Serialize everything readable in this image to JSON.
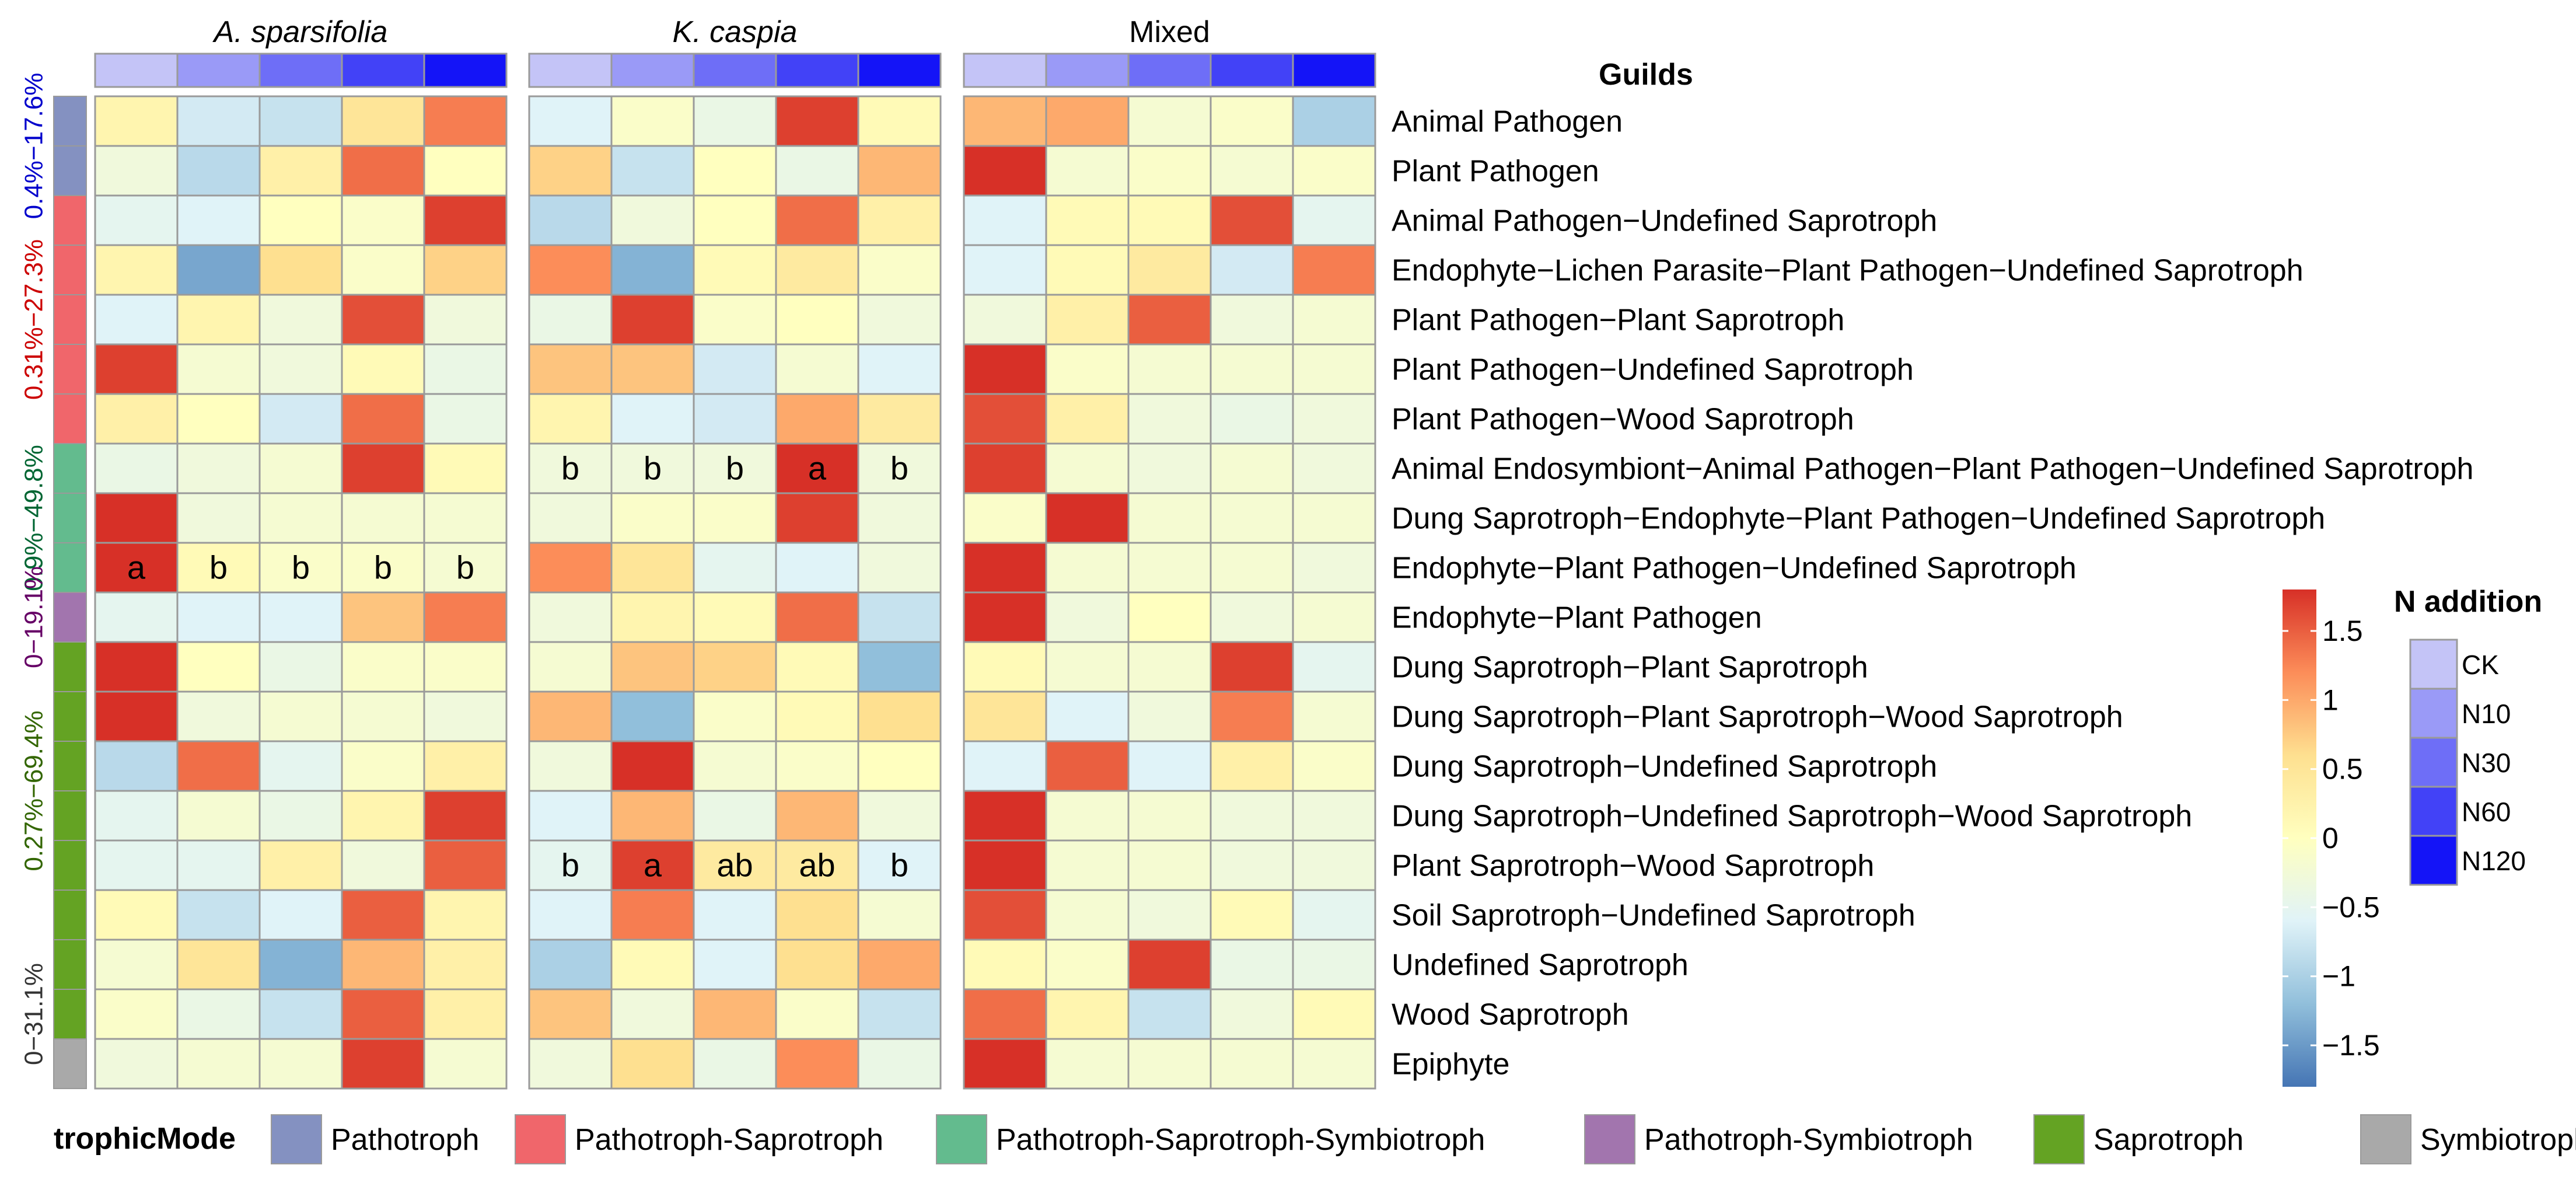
{
  "chart_data": {
    "type": "heatmap",
    "panels": [
      {
        "title": "A. sparsifolia",
        "italic": true
      },
      {
        "title": "K.  caspia",
        "italic": true
      },
      {
        "title": "Mixed",
        "italic": false
      }
    ],
    "treatments": [
      "CK",
      "N10",
      "N30",
      "N60",
      "N120"
    ],
    "treatment_colors": [
      "#c4c4f7",
      "#9a9af7",
      "#6e6ef7",
      "#4242f7",
      "#1414f7"
    ],
    "guilds_header": "Guilds",
    "guilds": [
      "Animal Pathogen",
      "Plant Pathogen",
      "Animal Pathogen−Undefined Saprotroph",
      "Endophyte−Lichen Parasite−Plant Pathogen−Undefined Saprotroph",
      "Plant Pathogen−Plant Saprotroph",
      "Plant Pathogen−Undefined Saprotroph",
      "Plant Pathogen−Wood Saprotroph",
      "Animal Endosymbiont−Animal Pathogen−Plant Pathogen−Undefined Saprotroph",
      "Dung Saprotroph−Endophyte−Plant Pathogen−Undefined Saprotroph",
      "Endophyte−Plant Pathogen−Undefined Saprotroph",
      "Endophyte−Plant Pathogen",
      "Dung Saprotroph−Plant Saprotroph",
      "Dung Saprotroph−Plant Saprotroph−Wood Saprotroph",
      "Dung Saprotroph−Undefined Saprotroph",
      "Dung Saprotroph−Undefined Saprotroph−Wood Saprotroph",
      "Plant Saprotroph−Wood Saprotroph",
      "Soil Saprotroph−Undefined Saprotroph",
      "Undefined Saprotroph",
      "Wood Saprotroph",
      "Epiphyte"
    ],
    "row_modes": [
      0,
      0,
      1,
      1,
      1,
      1,
      1,
      2,
      2,
      2,
      3,
      4,
      4,
      4,
      4,
      4,
      4,
      4,
      4,
      5
    ],
    "values": [
      [
        [
          0.2,
          -0.7,
          -0.8,
          0.5,
          1.3
        ],
        [
          -0.3,
          -0.9,
          0.3,
          1.4,
          0.0
        ],
        [
          -0.5,
          -0.6,
          0.0,
          -0.1,
          1.7
        ],
        [
          0.2,
          -1.4,
          0.6,
          -0.1,
          0.7
        ],
        [
          -0.6,
          0.2,
          -0.3,
          1.6,
          -0.3
        ],
        [
          1.7,
          -0.2,
          -0.3,
          0.1,
          -0.4
        ],
        [
          0.3,
          0.0,
          -0.7,
          1.4,
          -0.4
        ],
        [
          -0.4,
          -0.3,
          -0.2,
          1.7,
          0.1
        ],
        [
          1.8,
          -0.3,
          -0.2,
          -0.2,
          -0.2
        ],
        [
          1.8,
          0.1,
          -0.1,
          -0.1,
          -0.2
        ],
        [
          -0.5,
          -0.6,
          -0.6,
          0.8,
          1.3
        ],
        [
          1.8,
          0.0,
          -0.4,
          -0.1,
          -0.1
        ],
        [
          1.8,
          -0.3,
          -0.2,
          -0.2,
          -0.3
        ],
        [
          -0.9,
          1.4,
          -0.5,
          -0.1,
          0.3
        ],
        [
          -0.5,
          -0.2,
          -0.4,
          0.2,
          1.7
        ],
        [
          -0.5,
          -0.5,
          0.3,
          -0.3,
          1.5
        ],
        [
          0.1,
          -0.8,
          -0.6,
          1.5,
          0.2
        ],
        [
          -0.2,
          0.5,
          -1.3,
          0.9,
          0.3
        ],
        [
          -0.1,
          -0.4,
          -0.8,
          1.5,
          0.3
        ],
        [
          -0.3,
          -0.2,
          -0.2,
          1.7,
          -0.2
        ]
      ],
      [
        [
          -0.6,
          -0.1,
          -0.4,
          1.7,
          0.1
        ],
        [
          0.7,
          -0.8,
          0.0,
          -0.4,
          0.9
        ],
        [
          -0.9,
          -0.3,
          0.0,
          1.4,
          0.3
        ],
        [
          1.2,
          -1.3,
          0.1,
          0.4,
          -0.1
        ],
        [
          -0.4,
          1.7,
          -0.1,
          0.0,
          -0.3
        ],
        [
          0.8,
          0.8,
          -0.7,
          -0.2,
          -0.6
        ],
        [
          0.2,
          -0.6,
          -0.7,
          1.0,
          0.4
        ],
        [
          -0.3,
          -0.3,
          -0.3,
          1.8,
          -0.3
        ],
        [
          -0.3,
          -0.1,
          -0.1,
          1.7,
          -0.3
        ],
        [
          1.2,
          0.5,
          -0.5,
          -0.6,
          -0.3
        ],
        [
          -0.3,
          0.2,
          0.1,
          1.4,
          -0.8
        ],
        [
          -0.2,
          0.8,
          0.7,
          0.1,
          -1.2
        ],
        [
          0.9,
          -1.2,
          -0.1,
          0.1,
          0.6
        ],
        [
          -0.3,
          1.8,
          -0.2,
          -0.1,
          0.0
        ],
        [
          -0.6,
          0.9,
          -0.4,
          0.9,
          -0.3
        ],
        [
          -0.5,
          1.7,
          0.4,
          0.4,
          -0.6
        ],
        [
          -0.6,
          1.3,
          -0.6,
          0.6,
          -0.2
        ],
        [
          -1.0,
          0.1,
          -0.6,
          0.6,
          1.0
        ],
        [
          0.8,
          -0.3,
          0.9,
          -0.1,
          -0.8
        ],
        [
          -0.3,
          0.6,
          -0.4,
          1.2,
          -0.4
        ]
      ],
      [
        [
          0.9,
          1.0,
          -0.2,
          -0.1,
          -1.0
        ],
        [
          1.8,
          -0.2,
          -0.1,
          -0.2,
          -0.1
        ],
        [
          -0.6,
          0.1,
          0.1,
          1.6,
          -0.5
        ],
        [
          -0.6,
          0.1,
          0.4,
          -0.7,
          1.3
        ],
        [
          -0.3,
          0.3,
          1.5,
          -0.3,
          -0.2
        ],
        [
          1.8,
          -0.1,
          -0.2,
          -0.2,
          -0.2
        ],
        [
          1.6,
          0.3,
          -0.3,
          -0.4,
          -0.3
        ],
        [
          1.7,
          -0.2,
          -0.3,
          -0.2,
          -0.3
        ],
        [
          -0.1,
          1.8,
          -0.2,
          -0.2,
          -0.2
        ],
        [
          1.8,
          -0.2,
          -0.2,
          -0.2,
          -0.3
        ],
        [
          1.8,
          -0.3,
          0.0,
          -0.3,
          -0.2
        ],
        [
          0.1,
          -0.2,
          -0.2,
          1.7,
          -0.5
        ],
        [
          0.5,
          -0.6,
          -0.3,
          1.3,
          -0.2
        ],
        [
          -0.6,
          1.5,
          -0.6,
          0.3,
          -0.1
        ],
        [
          1.8,
          -0.2,
          -0.2,
          -0.3,
          -0.3
        ],
        [
          1.8,
          -0.2,
          -0.2,
          -0.3,
          -0.3
        ],
        [
          1.6,
          -0.2,
          -0.3,
          0.1,
          -0.5
        ],
        [
          0.1,
          -0.1,
          1.7,
          -0.4,
          -0.4
        ],
        [
          1.4,
          0.2,
          -0.8,
          -0.3,
          0.1
        ],
        [
          1.8,
          -0.2,
          -0.2,
          -0.2,
          -0.2
        ]
      ]
    ],
    "cell_labels": [
      {
        "panel": 0,
        "row": 9,
        "labels": [
          "a",
          "b",
          "b",
          "b",
          "b"
        ]
      },
      {
        "panel": 1,
        "row": 7,
        "labels": [
          "b",
          "b",
          "b",
          "a",
          "b"
        ]
      },
      {
        "panel": 1,
        "row": 15,
        "labels": [
          "b",
          "a",
          "ab",
          "ab",
          "b"
        ]
      }
    ],
    "range_labels": [
      {
        "text": "0.4%−17.6%",
        "color": "#0000cc",
        "from_row": 0,
        "to_row": 1
      },
      {
        "text": "0.31%−27.3%",
        "color": "#cc0000",
        "from_row": 2,
        "to_row": 6
      },
      {
        "text": "0.9%−49.8%",
        "color": "#006633",
        "from_row": 7,
        "to_row": 9
      },
      {
        "text": "0−19.1%",
        "color": "#660066",
        "from_row": 10,
        "to_row": 10
      },
      {
        "text": "0.27%−69.4%",
        "color": "#336600",
        "from_row": 11,
        "to_row": 16
      },
      {
        "text": "0−31.1%",
        "color": "#333333",
        "from_row": 17,
        "to_row": 19
      }
    ],
    "trophic_mode": {
      "title": "trophicMode",
      "items": [
        {
          "label": "Pathotroph",
          "color": "#8491c1"
        },
        {
          "label": "Pathotroph-Saprotroph",
          "color": "#f0666b"
        },
        {
          "label": "Pathotroph-Saprotroph-Symbiotroph",
          "color": "#63bb8e"
        },
        {
          "label": "Pathotroph-Symbiotroph",
          "color": "#a275ae"
        },
        {
          "label": "Saprotroph",
          "color": "#64a323"
        },
        {
          "label": "Symbiotroph",
          "color": "#a9a9a9"
        }
      ]
    },
    "color_scale": {
      "min": -1.8,
      "max": 1.8,
      "stops": [
        {
          "v": -1.8,
          "c": "#4575b4"
        },
        {
          "v": -1.2,
          "c": "#91bfdb"
        },
        {
          "v": -0.6,
          "c": "#e0f3f8"
        },
        {
          "v": 0.0,
          "c": "#ffffbf"
        },
        {
          "v": 0.6,
          "c": "#fee090"
        },
        {
          "v": 1.2,
          "c": "#fc8d59"
        },
        {
          "v": 1.8,
          "c": "#d73027"
        }
      ],
      "ticks": [
        1.5,
        1,
        0.5,
        0,
        -0.5,
        -1,
        -1.5
      ],
      "tick_labels": [
        "1.5",
        "1",
        "0.5",
        "0",
        "−0.5",
        "−1",
        "−1.5"
      ]
    },
    "n_addition_legend": {
      "title": "N addition",
      "items": [
        "CK",
        "N10",
        "N30",
        "N60",
        "N120"
      ]
    }
  }
}
